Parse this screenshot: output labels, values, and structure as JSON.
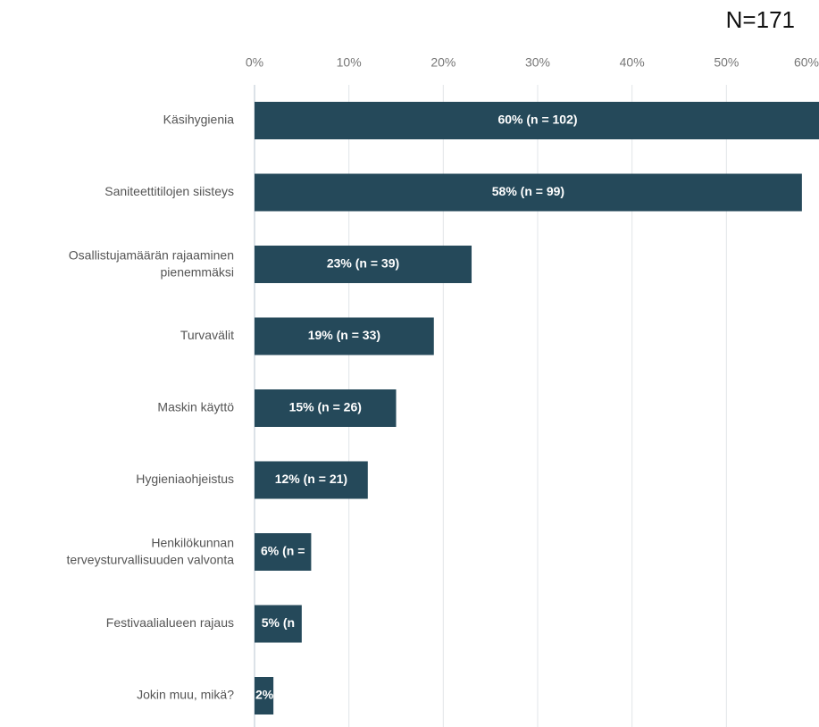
{
  "chart_data": {
    "type": "barh",
    "annotation": "N=171",
    "categories": [
      "Käsihygienia",
      "Saniteettitilojen siisteys",
      "Osallistujamäärän rajaaminen\npienemmäksi",
      "Turvavälit",
      "Maskin käyttö",
      "Hygieniaohjeistus",
      "Henkilökunnan\nterveysturvallisuuden valvonta",
      "Festivaalialueen rajaus",
      "Jokin muu, mikä?"
    ],
    "values": [
      60,
      58,
      23,
      19,
      15,
      12,
      6,
      5,
      2
    ],
    "value_labels": [
      "60% (n = 102)",
      "58% (n = 99)",
      "23% (n = 39)",
      "19% (n = 33)",
      "15% (n = 26)",
      "12% (n = 21)",
      "6% (n =",
      "5% (n",
      "2%"
    ],
    "color": "#25495a",
    "xlim": [
      0,
      60
    ],
    "xticks": [
      {
        "value": 0,
        "label": "0%"
      },
      {
        "value": 10,
        "label": "10%"
      },
      {
        "value": 20,
        "label": "20%"
      },
      {
        "value": 30,
        "label": "30%"
      },
      {
        "value": 40,
        "label": "40%"
      },
      {
        "value": 50,
        "label": "50%"
      },
      {
        "value": 60,
        "label": "60%"
      }
    ],
    "grid": true
  }
}
